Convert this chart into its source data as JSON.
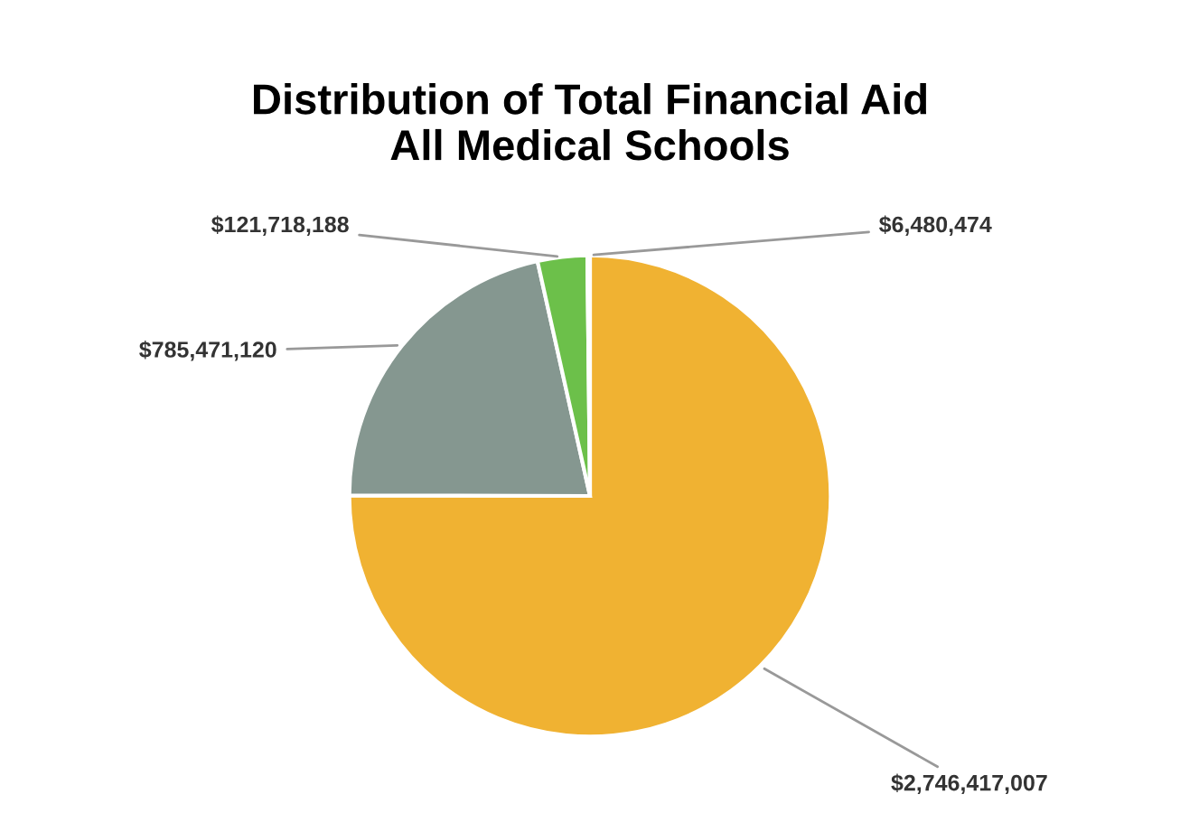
{
  "chart_data": {
    "type": "pie",
    "title": "Distribution of Total Financial Aid\nAll Medical Schools",
    "categories": [
      null,
      null,
      null,
      null
    ],
    "values": [
      2746417007,
      785471120,
      121718188,
      6480474
    ],
    "value_labels": [
      "$2,746,417,007",
      "$785,471,120",
      "$121,718,188",
      "$6,480,474"
    ],
    "colors": [
      "#f0b232",
      "#859790",
      "#6cc04a",
      "#f2f2f2"
    ]
  }
}
